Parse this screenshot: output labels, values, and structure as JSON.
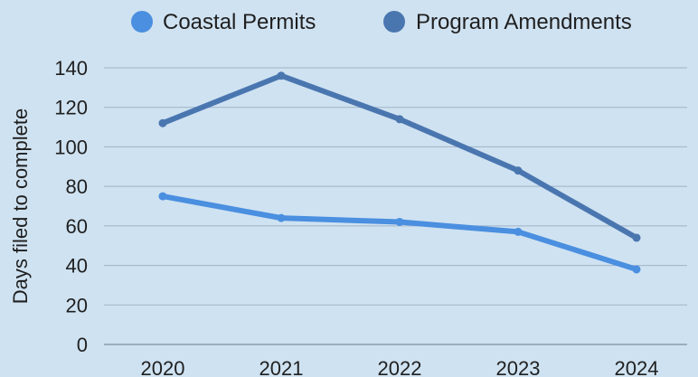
{
  "colors": {
    "background": "#cfe2f1",
    "coastal_permits": "#4a8fe0",
    "program_amendments": "#4a76b0",
    "grid": "#9fb3c7"
  },
  "chart_data": {
    "type": "line",
    "categories": [
      "2020",
      "2021",
      "2022",
      "2023",
      "2024"
    ],
    "series": [
      {
        "name": "Coastal Permits",
        "values": [
          75,
          64,
          62,
          57,
          38
        ]
      },
      {
        "name": "Program Amendments",
        "values": [
          112,
          136,
          114,
          88,
          54
        ]
      }
    ],
    "xlabel": "",
    "ylabel": "Days filed to complete",
    "ylim": [
      0,
      140
    ],
    "yticks": [
      0,
      20,
      40,
      60,
      80,
      100,
      120,
      140
    ],
    "grid": true,
    "legend_position": "top"
  }
}
